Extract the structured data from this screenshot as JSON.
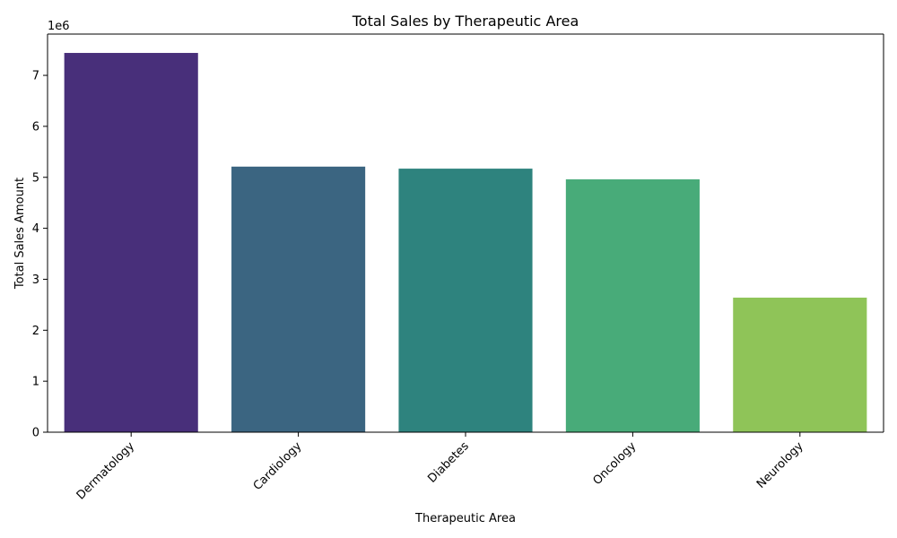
{
  "chart_data": {
    "type": "bar",
    "title": "Total Sales by Therapeutic Area",
    "xlabel": "Therapeutic Area",
    "ylabel": "Total Sales Amount",
    "y_offset_label": "1e6",
    "categories": [
      "Dermatology",
      "Cardiology",
      "Diabetes",
      "Oncology",
      "Neurology"
    ],
    "values": [
      7440000,
      5210000,
      5170000,
      4960000,
      2640000
    ],
    "colors": [
      "#482f7a",
      "#3b6581",
      "#2e837e",
      "#48ab79",
      "#8fc458"
    ],
    "ylim": [
      0,
      7810000
    ],
    "yticks": [
      0,
      1000000,
      2000000,
      3000000,
      4000000,
      5000000,
      6000000,
      7000000
    ],
    "ytick_labels": [
      "0",
      "1",
      "2",
      "3",
      "4",
      "5",
      "6",
      "7"
    ],
    "grid": false,
    "legend": "none"
  }
}
